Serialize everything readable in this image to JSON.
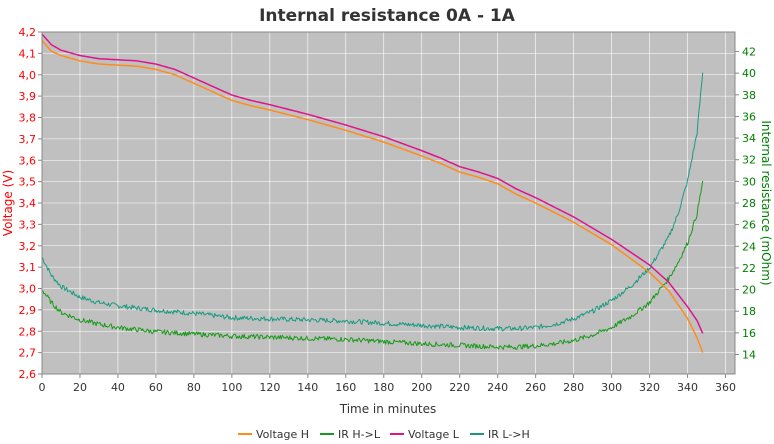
{
  "chart_data": {
    "type": "line",
    "title": "Internal resistance  0A - 1A",
    "xlabel": "Time in minutes",
    "ylabel_left": "Voltage (V)",
    "ylabel_right": "Internal resistance (mOhm)",
    "xlim": [
      0,
      365
    ],
    "ylim_left": [
      2.6,
      4.2
    ],
    "ylim_right": [
      12.2,
      43.8
    ],
    "x_ticks": [
      0,
      20,
      40,
      60,
      80,
      100,
      120,
      140,
      160,
      180,
      200,
      220,
      240,
      260,
      280,
      300,
      320,
      340,
      360
    ],
    "y_left_ticks": [
      "2,6",
      "2,7",
      "2,8",
      "2,9",
      "3,0",
      "3,1",
      "3,2",
      "3,3",
      "3,4",
      "3,5",
      "3,6",
      "3,7",
      "3,8",
      "3,9",
      "4,0",
      "4,1",
      "4,2"
    ],
    "y_right_ticks": [
      14,
      16,
      18,
      20,
      22,
      24,
      26,
      28,
      30,
      32,
      34,
      36,
      38,
      40,
      42
    ],
    "grid": true,
    "legend_position": "bottom",
    "background": "#c0c0c0",
    "colors": {
      "left_axis": "#ff0000",
      "right_axis": "#008000",
      "title": "#333333"
    },
    "series": [
      {
        "name": "Voltage H",
        "axis": "left",
        "color": "#ff8c1a",
        "x": [
          0,
          5,
          10,
          20,
          30,
          40,
          50,
          60,
          70,
          80,
          90,
          100,
          110,
          120,
          140,
          160,
          180,
          200,
          210,
          220,
          230,
          240,
          250,
          260,
          280,
          300,
          310,
          320,
          330,
          340,
          345,
          348
        ],
        "y": [
          4.16,
          4.11,
          4.09,
          4.065,
          4.05,
          4.045,
          4.04,
          4.025,
          4.0,
          3.96,
          3.92,
          3.88,
          3.855,
          3.835,
          3.79,
          3.74,
          3.685,
          3.62,
          3.585,
          3.545,
          3.52,
          3.49,
          3.44,
          3.4,
          3.31,
          3.205,
          3.14,
          3.075,
          2.99,
          2.86,
          2.77,
          2.7
        ]
      },
      {
        "name": "Voltage L",
        "axis": "left",
        "color": "#e0138c",
        "x": [
          0,
          5,
          10,
          20,
          30,
          40,
          50,
          60,
          70,
          80,
          90,
          100,
          110,
          120,
          140,
          160,
          180,
          200,
          210,
          220,
          230,
          240,
          250,
          260,
          280,
          300,
          310,
          320,
          330,
          340,
          345,
          348
        ],
        "y": [
          4.19,
          4.14,
          4.115,
          4.09,
          4.075,
          4.07,
          4.065,
          4.05,
          4.025,
          3.985,
          3.945,
          3.905,
          3.88,
          3.86,
          3.815,
          3.765,
          3.71,
          3.645,
          3.61,
          3.57,
          3.545,
          3.515,
          3.465,
          3.425,
          3.335,
          3.23,
          3.17,
          3.11,
          3.03,
          2.915,
          2.85,
          2.79
        ]
      },
      {
        "name": "IR H->L",
        "axis": "right",
        "color": "#1a9a1a",
        "x": [
          0,
          5,
          10,
          20,
          30,
          40,
          60,
          80,
          100,
          120,
          140,
          160,
          180,
          200,
          220,
          240,
          250,
          260,
          270,
          280,
          290,
          300,
          310,
          320,
          330,
          335,
          340,
          345,
          348
        ],
        "y": [
          20.0,
          18.8,
          17.9,
          17.2,
          16.8,
          16.5,
          16.1,
          15.9,
          15.7,
          15.6,
          15.5,
          15.4,
          15.2,
          15.0,
          14.85,
          14.7,
          14.7,
          14.8,
          15.0,
          15.3,
          15.8,
          16.5,
          17.5,
          18.8,
          21.0,
          22.5,
          24.3,
          27.0,
          30.0
        ]
      },
      {
        "name": "IR L->H",
        "axis": "right",
        "color": "#1a9b80",
        "x": [
          0,
          5,
          10,
          20,
          30,
          40,
          60,
          80,
          100,
          120,
          140,
          160,
          180,
          200,
          220,
          240,
          250,
          260,
          270,
          280,
          290,
          300,
          310,
          320,
          330,
          335,
          340,
          345,
          348
        ],
        "y": [
          23.0,
          21.3,
          20.3,
          19.3,
          18.8,
          18.5,
          18.1,
          17.8,
          17.4,
          17.3,
          17.2,
          17.1,
          16.9,
          16.7,
          16.5,
          16.4,
          16.4,
          16.5,
          16.8,
          17.3,
          18.0,
          19.0,
          20.3,
          22.0,
          24.8,
          27.0,
          30.0,
          34.5,
          40.0
        ]
      }
    ]
  }
}
